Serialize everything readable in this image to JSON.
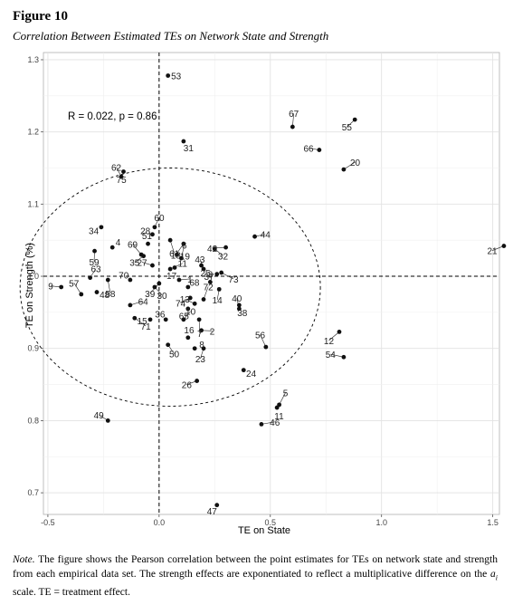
{
  "figure": {
    "label": "Figure 10",
    "title": "Correlation Between Estimated TEs on Network State and Strength"
  },
  "note": {
    "label": "Note.",
    "text_before": "The figure shows the Pearson correlation between the point estimates for TEs on network state and strength from each empirical data set. The strength effects are exponentiated to reflect a multiplicative difference on the ",
    "symbol": "a",
    "subscript": "i",
    "text_after": " scale. TE = treatment effect."
  },
  "chart_data": {
    "type": "scatter",
    "xlabel": "TE on State",
    "ylabel": "TE on Strength (%)",
    "xlim": [
      -0.52,
      1.53
    ],
    "ylim": [
      0.67,
      1.31
    ],
    "x_ticks": [
      -0.5,
      0.0,
      0.5,
      1.0,
      1.5
    ],
    "x_tick_labels": [
      "-0.5",
      "0.0",
      "0.5",
      "1.0",
      "1.5"
    ],
    "y_ticks": [
      0.7,
      0.8,
      0.9,
      1.0,
      1.1,
      1.2,
      1.3
    ],
    "y_tick_labels": [
      "0.7",
      "0.8",
      "0.9",
      "1.0",
      "1.1",
      "1.2",
      "1.3"
    ],
    "grid": true,
    "annotation": "R = 0.022, p = 0.86",
    "reference_lines": {
      "x": 0,
      "y": 1.0
    },
    "ellipse": {
      "cx": 0.05,
      "cy": 0.985,
      "rx": 0.675,
      "ry": 0.165
    },
    "points": [
      {
        "label": "53",
        "x": 0.04,
        "y": 1.278
      },
      {
        "label": "55",
        "x": 0.88,
        "y": 1.217
      },
      {
        "label": "67",
        "x": 0.6,
        "y": 1.207
      },
      {
        "label": "31",
        "x": 0.11,
        "y": 1.187
      },
      {
        "label": "66",
        "x": 0.72,
        "y": 1.175
      },
      {
        "label": "20",
        "x": 0.83,
        "y": 1.148
      },
      {
        "label": "75",
        "x": -0.16,
        "y": 1.145
      },
      {
        "label": "62",
        "x": -0.17,
        "y": 1.138
      },
      {
        "label": "21",
        "x": 1.55,
        "y": 1.042
      },
      {
        "label": "34",
        "x": -0.26,
        "y": 1.068
      },
      {
        "label": "60",
        "x": -0.02,
        "y": 1.068
      },
      {
        "label": "61",
        "x": 0.05,
        "y": 1.05
      },
      {
        "label": "28",
        "x": -0.03,
        "y": 1.058
      },
      {
        "label": "44",
        "x": 0.43,
        "y": 1.055
      },
      {
        "label": "18",
        "x": 0.11,
        "y": 1.045
      },
      {
        "label": "51",
        "x": -0.05,
        "y": 1.045
      },
      {
        "label": "32",
        "x": 0.25,
        "y": 1.038
      },
      {
        "label": "42",
        "x": 0.3,
        "y": 1.04
      },
      {
        "label": "4",
        "x": -0.21,
        "y": 1.04
      },
      {
        "label": "59",
        "x": -0.29,
        "y": 1.035
      },
      {
        "label": "69",
        "x": -0.08,
        "y": 1.03
      },
      {
        "label": "19",
        "x": 0.08,
        "y": 1.03
      },
      {
        "label": "35",
        "x": -0.07,
        "y": 1.028
      },
      {
        "label": "6",
        "x": 0.1,
        "y": 1.025
      },
      {
        "label": "25",
        "x": 0.19,
        "y": 1.015
      },
      {
        "label": "27",
        "x": -0.03,
        "y": 1.015
      },
      {
        "label": "11",
        "x": 0.05,
        "y": 1.01
      },
      {
        "label": "17",
        "x": 0.07,
        "y": 1.012
      },
      {
        "label": "43",
        "x": 0.2,
        "y": 1.01
      },
      {
        "label": "73",
        "x": 0.28,
        "y": 1.005
      },
      {
        "label": "37",
        "x": 0.26,
        "y": 1.003
      },
      {
        "label": "63",
        "x": -0.31,
        "y": 0.998
      },
      {
        "label": "58",
        "x": -0.23,
        "y": 0.995
      },
      {
        "label": "70",
        "x": -0.13,
        "y": 0.995
      },
      {
        "label": "1",
        "x": 0.09,
        "y": 0.995
      },
      {
        "label": "39",
        "x": 0.0,
        "y": 0.99
      },
      {
        "label": "3",
        "x": 0.23,
        "y": 0.992
      },
      {
        "label": "30",
        "x": -0.02,
        "y": 0.985
      },
      {
        "label": "9",
        "x": -0.44,
        "y": 0.985
      },
      {
        "label": "68",
        "x": 0.13,
        "y": 0.985
      },
      {
        "label": "14",
        "x": 0.27,
        "y": 0.982
      },
      {
        "label": "57",
        "x": -0.35,
        "y": 0.975
      },
      {
        "label": "48",
        "x": -0.28,
        "y": 0.978
      },
      {
        "label": "74",
        "x": 0.14,
        "y": 0.97
      },
      {
        "label": "72",
        "x": 0.2,
        "y": 0.968
      },
      {
        "label": "38",
        "x": 0.36,
        "y": 0.96
      },
      {
        "label": "13",
        "x": 0.16,
        "y": 0.962
      },
      {
        "label": "64",
        "x": -0.13,
        "y": 0.96
      },
      {
        "label": "65",
        "x": 0.13,
        "y": 0.955
      },
      {
        "label": "40",
        "x": 0.36,
        "y": 0.955
      },
      {
        "label": "71",
        "x": -0.11,
        "y": 0.942
      },
      {
        "label": "15",
        "x": -0.04,
        "y": 0.94
      },
      {
        "label": "10",
        "x": 0.11,
        "y": 0.94
      },
      {
        "label": "7",
        "x": 0.18,
        "y": 0.94
      },
      {
        "label": "36",
        "x": 0.03,
        "y": 0.94
      },
      {
        "label": "2",
        "x": 0.19,
        "y": 0.925
      },
      {
        "label": "12",
        "x": 0.81,
        "y": 0.923
      },
      {
        "label": "16",
        "x": 0.13,
        "y": 0.915
      },
      {
        "label": "50",
        "x": 0.04,
        "y": 0.905
      },
      {
        "label": "54",
        "x": 0.83,
        "y": 0.888
      },
      {
        "label": "8",
        "x": 0.16,
        "y": 0.9
      },
      {
        "label": "23",
        "x": 0.2,
        "y": 0.9
      },
      {
        "label": "56",
        "x": 0.48,
        "y": 0.902
      },
      {
        "label": "24",
        "x": 0.38,
        "y": 0.87
      },
      {
        "label": "26",
        "x": 0.17,
        "y": 0.855
      },
      {
        "label": "5",
        "x": 0.54,
        "y": 0.822
      },
      {
        "label": "11",
        "x": 0.53,
        "y": 0.818
      },
      {
        "label": "49",
        "x": -0.23,
        "y": 0.8
      },
      {
        "label": "46",
        "x": 0.46,
        "y": 0.795
      },
      {
        "label": "47",
        "x": 0.26,
        "y": 0.683
      }
    ]
  }
}
